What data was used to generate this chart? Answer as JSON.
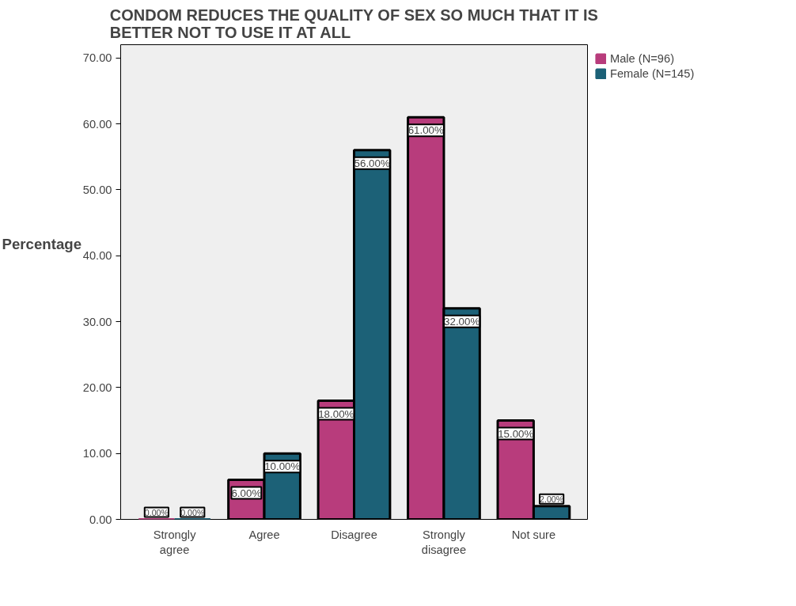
{
  "chart_data": {
    "type": "bar",
    "title": "CONDOM REDUCES THE QUALITY OF SEX SO MUCH THAT IT IS\nBETTER NOT TO USE IT AT ALL",
    "ylabel": "Percentage",
    "categories": [
      "Strongly agree",
      "Agree",
      "Disagree",
      "Strongly disagree",
      "Not sure"
    ],
    "series": [
      {
        "name": "Male (N=96)",
        "color": "#b83c7c",
        "values": [
          0,
          6,
          18,
          61,
          15
        ],
        "value_labels": [
          "0.00%",
          "6.00%",
          "18.00%",
          "61.00%",
          "15.00%"
        ]
      },
      {
        "name": "Female (N=145)",
        "color": "#1c6177",
        "values": [
          0,
          10,
          56,
          32,
          2
        ],
        "value_labels": [
          "0.00%",
          "10.00%",
          "56.00%",
          "32.00%",
          "2.00%"
        ]
      }
    ],
    "ylim": [
      0,
      72
    ],
    "yticks": [
      {
        "value": 0,
        "label": "0.00"
      },
      {
        "value": 10,
        "label": "10.00"
      },
      {
        "value": 20,
        "label": "20.00"
      },
      {
        "value": 30,
        "label": "30.00"
      },
      {
        "value": 40,
        "label": "40.00"
      },
      {
        "value": 50,
        "label": "50.00"
      },
      {
        "value": 60,
        "label": "60.00"
      },
      {
        "value": 70,
        "label": "70.00"
      }
    ],
    "grid": false,
    "legend": "top right"
  }
}
